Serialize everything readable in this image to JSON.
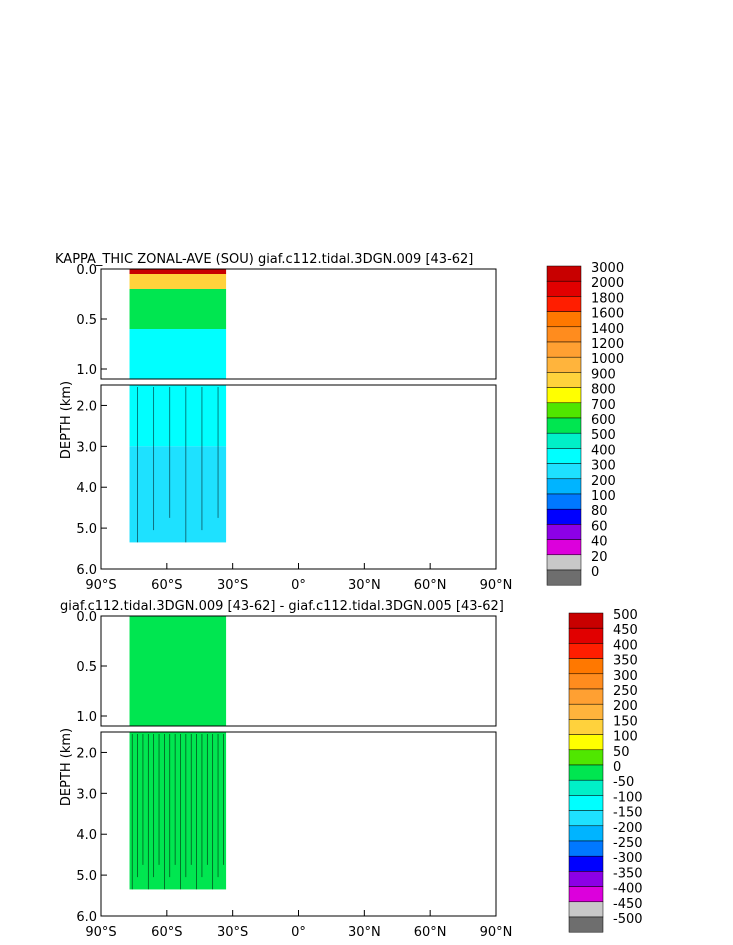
{
  "chart_data": [
    {
      "type": "heatmap",
      "title": "KAPPA_THIC ZONAL-AVE (SOU) giaf.c112.tidal.3DGN.009 [43-62]",
      "ylabel": "DEPTH (km)",
      "xlim": [
        -90,
        90
      ],
      "ylim": [
        6.0,
        0.0
      ],
      "x_ticks": [
        "90°S",
        "60°S",
        "30°S",
        "0°",
        "30°N",
        "60°N",
        "90°N"
      ],
      "y_ticks_upper": [
        "0.0",
        "0.5",
        "1.0"
      ],
      "y_ticks_lower": [
        "2.0",
        "3.0",
        "4.0",
        "5.0",
        "6.0"
      ],
      "legend": {
        "placement": "right",
        "levels": [
          "3000",
          "2000",
          "1800",
          "1600",
          "1400",
          "1200",
          "1000",
          "900",
          "800",
          "700",
          "600",
          "500",
          "400",
          "300",
          "200",
          "100",
          "80",
          "60",
          "40",
          "20",
          "0"
        ],
        "colors": [
          "#c80000",
          "#e10000",
          "#ff1e00",
          "#ff7800",
          "#ff8c1e",
          "#ffa032",
          "#ffb43c",
          "#ffd23c",
          "#ffff00",
          "#50e600",
          "#00e650",
          "#00f0c8",
          "#00ffff",
          "#1ee1ff",
          "#00b4ff",
          "#0078ff",
          "#0000ff",
          "#8c00e6",
          "#dc00dc",
          "#c8c8c8",
          "#6e6e6e"
        ]
      },
      "data_extent": {
        "lat_min": -77,
        "lat_max": -33,
        "max_depth_km": 5.35
      },
      "regions": [
        {
          "lat": [
            -77,
            -33
          ],
          "depth_km": [
            0.0,
            0.05
          ],
          "value": 3000
        },
        {
          "lat": [
            -77,
            -33
          ],
          "depth_km": [
            0.05,
            0.2
          ],
          "value": 900
        },
        {
          "lat": [
            -77,
            -33
          ],
          "depth_km": [
            0.2,
            0.6
          ],
          "value": 600
        },
        {
          "lat": [
            -77,
            -33
          ],
          "depth_km": [
            0.6,
            3.0
          ],
          "value": 400
        },
        {
          "lat": [
            -77,
            -33
          ],
          "depth_km": [
            3.0,
            5.35
          ],
          "value": 300
        }
      ]
    },
    {
      "type": "heatmap",
      "title": "giaf.c112.tidal.3DGN.009 [43-62] - giaf.c112.tidal.3DGN.005 [43-62]",
      "ylabel": "DEPTH (km)",
      "xlim": [
        -90,
        90
      ],
      "ylim": [
        6.0,
        0.0
      ],
      "x_ticks": [
        "90°S",
        "60°S",
        "30°S",
        "0°",
        "30°N",
        "60°N",
        "90°N"
      ],
      "y_ticks_upper": [
        "0.0",
        "0.5",
        "1.0"
      ],
      "y_ticks_lower": [
        "2.0",
        "3.0",
        "4.0",
        "5.0",
        "6.0"
      ],
      "legend": {
        "placement": "right",
        "levels": [
          "500",
          "450",
          "400",
          "350",
          "300",
          "250",
          "200",
          "150",
          "100",
          "50",
          "0",
          "-50",
          "-100",
          "-150",
          "-200",
          "-250",
          "-300",
          "-350",
          "-400",
          "-450",
          "-500"
        ],
        "colors": [
          "#c80000",
          "#e10000",
          "#ff1e00",
          "#ff7800",
          "#ff8c1e",
          "#ffa032",
          "#ffb43c",
          "#ffd23c",
          "#ffff00",
          "#50e600",
          "#00e650",
          "#00f0c8",
          "#00ffff",
          "#1ee1ff",
          "#00b4ff",
          "#0078ff",
          "#0000ff",
          "#8c00e6",
          "#dc00dc",
          "#c8c8c8",
          "#6e6e6e"
        ]
      },
      "data_extent": {
        "lat_min": -77,
        "lat_max": -33,
        "max_depth_km": 5.35
      },
      "regions": [
        {
          "lat": [
            -77,
            -33
          ],
          "depth_km": [
            0.0,
            5.35
          ],
          "value": 25
        }
      ]
    }
  ]
}
